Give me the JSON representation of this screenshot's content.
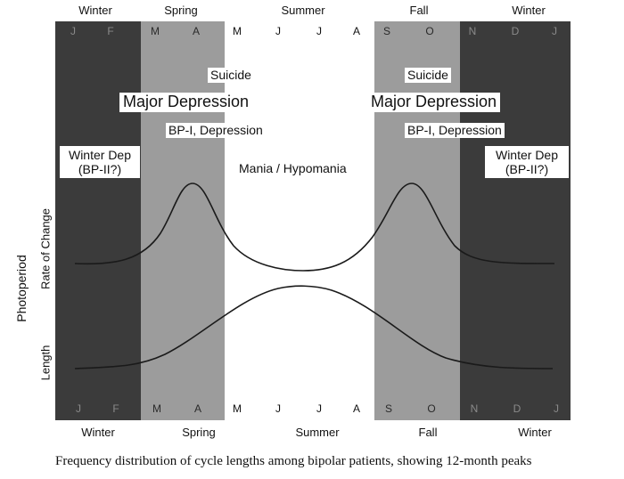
{
  "seasons_top": [
    "Winter",
    "Spring",
    "Summer",
    "Fall",
    "Winter"
  ],
  "seasons_bottom": [
    "Winter",
    "Spring",
    "Summer",
    "Fall",
    "Winter"
  ],
  "months_top": [
    "J",
    "F",
    "M",
    "A",
    "M",
    "J",
    "J",
    "A",
    "S",
    "O",
    "N",
    "D",
    "J"
  ],
  "months_bottom": [
    "J",
    "F",
    "M",
    "A",
    "M",
    "J",
    "J",
    "A",
    "S",
    "O",
    "N",
    "D",
    "J"
  ],
  "labels": {
    "suicide_spring": "Suicide",
    "major_dep_spring": "Major Depression",
    "bp1_spring": "BP-I, Depression",
    "suicide_fall": "Suicide",
    "major_dep_fall": "Major Depression",
    "bp1_fall": "BP-I, Depression",
    "mania": "Mania / Hypomania",
    "winter_dep_left_1": "Winter Dep",
    "winter_dep_left_2": "(BP-II?)",
    "winter_dep_right_1": "Winter Dep",
    "winter_dep_right_2": "(BP-II?)"
  },
  "axis": {
    "photoperiod": "Photoperiod",
    "rate_of_change": "Rate of Change",
    "length": "Length"
  },
  "caption": "Frequency distribution of cycle lengths among bipolar patients, showing 12-month peaks",
  "colors": {
    "winter_band": "#3b3b3b",
    "transition_band": "#9c9c9c",
    "summer_band": "#ffffff",
    "curve": "#1a1a1a"
  }
}
